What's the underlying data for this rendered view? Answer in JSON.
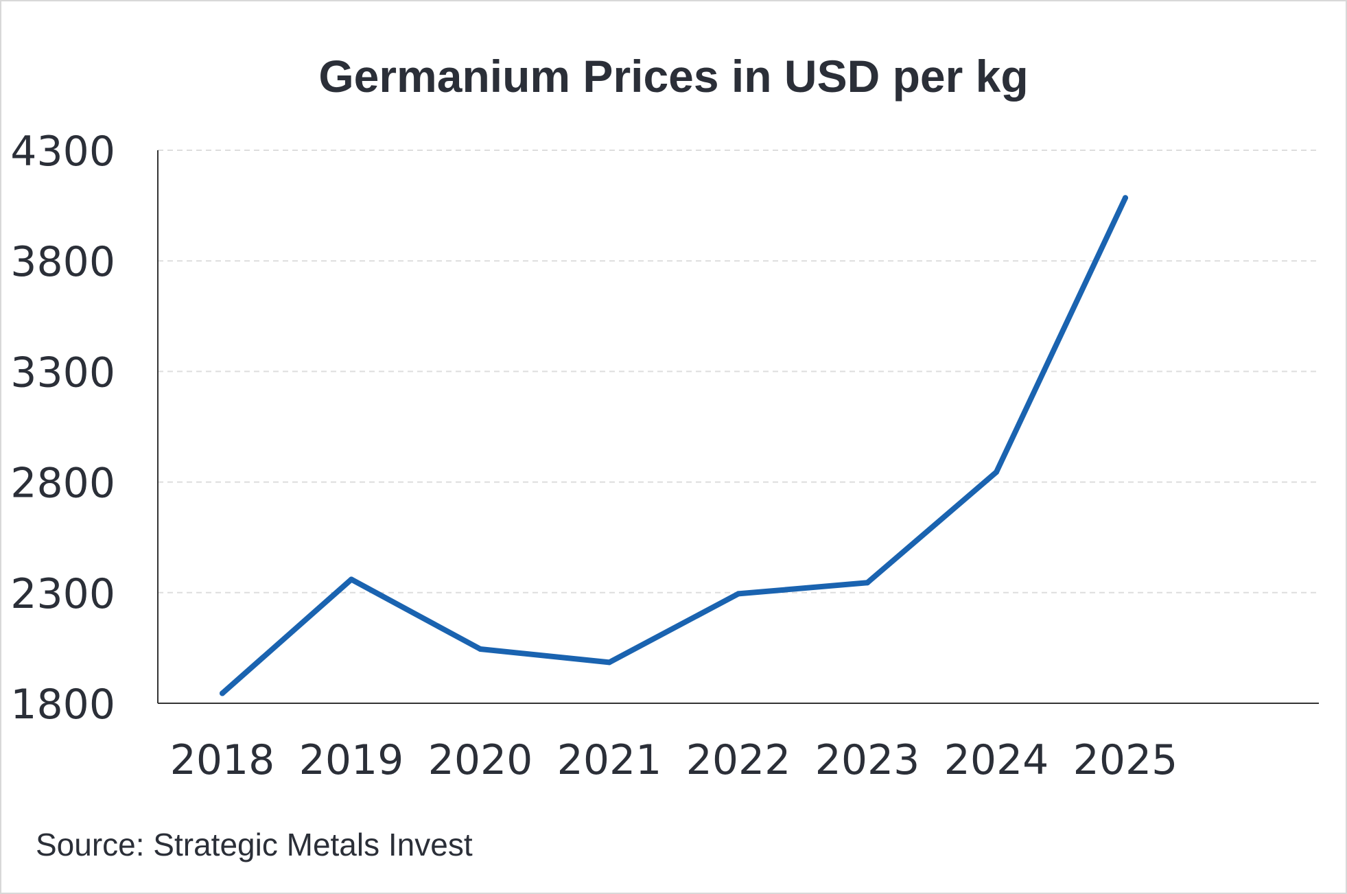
{
  "title": "Germanium Prices in USD per kg",
  "source": "Source: Strategic Metals Invest",
  "colors": {
    "line": "#1a63b0",
    "text": "#2b2f38",
    "grid": "#dddddd",
    "axis": "#333333"
  },
  "chart_data": {
    "type": "line",
    "title": "Germanium Prices in USD per kg",
    "xlabel": "",
    "ylabel": "",
    "categories": [
      "2018",
      "2019",
      "2020",
      "2021",
      "2022",
      "2023",
      "2024",
      "2025"
    ],
    "series": [
      {
        "values": [
          1845,
          2360,
          2045,
          1985,
          2295,
          2345,
          2845,
          4085
        ]
      }
    ],
    "yticks": [
      "4300",
      "3800",
      "3300",
      "2800",
      "2300",
      "1800"
    ],
    "ylim": [
      1800,
      4300
    ],
    "grid": "horizontal-dashed"
  }
}
